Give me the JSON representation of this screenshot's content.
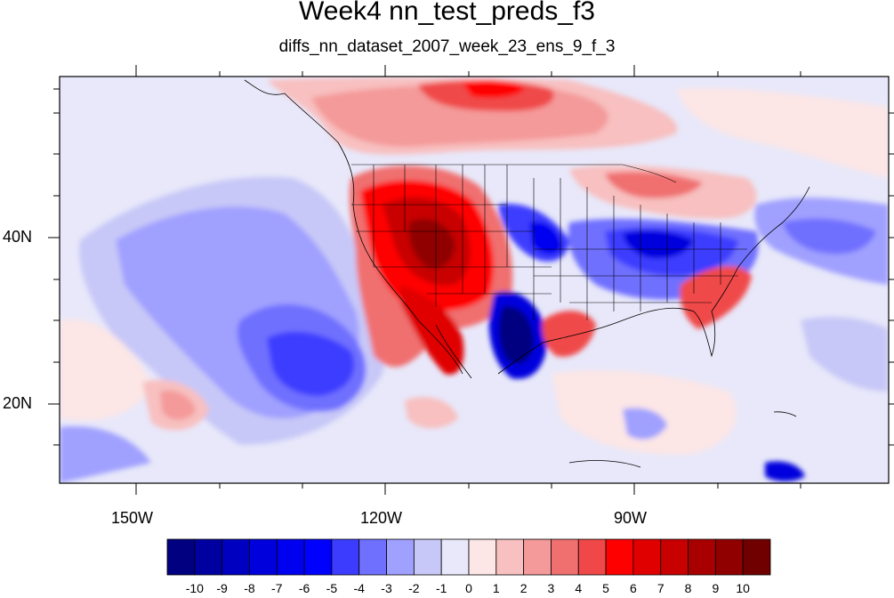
{
  "title": "Week4 nn_test_preds_f3",
  "subtitle": "diffs_nn_dataset_2007_week_23_ens_9_f_3",
  "x_axis_labels": [
    "150W",
    "120W",
    "90W"
  ],
  "y_axis_labels": [
    "40N",
    "20N"
  ],
  "colorbar": {
    "labels": [
      "-10",
      "-9",
      "-8",
      "-7",
      "-6",
      "-5",
      "-4",
      "-3",
      "-2",
      "-1",
      "0",
      "1",
      "2",
      "3",
      "4",
      "5",
      "6",
      "7",
      "8",
      "9",
      "10"
    ],
    "colors": [
      "#000080",
      "#0000a0",
      "#0000c0",
      "#0000dd",
      "#0000f0",
      "#0000ff",
      "#3c3cff",
      "#7070ff",
      "#a0a0ff",
      "#c8c8f8",
      "#e8e8fa",
      "#fce6e6",
      "#f8c0c0",
      "#f49a9a",
      "#f07070",
      "#f04848",
      "#ff0000",
      "#e00000",
      "#c80000",
      "#a80000",
      "#900000",
      "#700000"
    ]
  },
  "colors": {
    "background_field": "#e8e8fa",
    "strong_positive": "#b40000",
    "strong_negative": "#0000c8"
  }
}
